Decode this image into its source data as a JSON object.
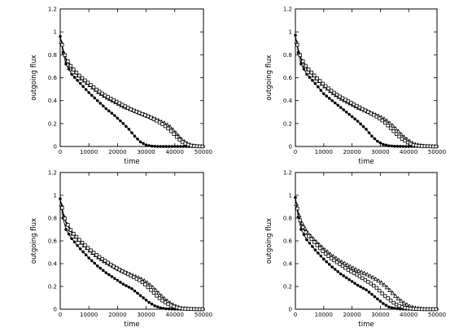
{
  "chart_data": [
    {
      "type": "line",
      "xlabel": "time",
      "ylabel": "outgoing flux",
      "xlim": [
        0,
        50000
      ],
      "ylim": [
        0,
        1.2
      ],
      "xticks": [
        "0",
        "10000",
        "20000",
        "30000",
        "40000",
        "50000"
      ],
      "yticks": [
        "0",
        "0.2",
        "0.4",
        "0.6",
        "0.8",
        "1",
        "1.2"
      ],
      "series": [
        {
          "marker": "circle-filled",
          "x": [
            0,
            1000,
            2000,
            4000,
            7000,
            10000,
            13000,
            16000,
            19000,
            22000,
            24000,
            26000,
            28000,
            30000,
            32000,
            34000,
            36000,
            40000,
            45000,
            50000
          ],
          "y": [
            0.96,
            0.82,
            0.72,
            0.63,
            0.55,
            0.47,
            0.4,
            0.33,
            0.27,
            0.2,
            0.15,
            0.09,
            0.04,
            0.012,
            0.003,
            0,
            0,
            0,
            0,
            0
          ]
        },
        {
          "marker": "triangle-open",
          "x": [
            0,
            1000,
            2000,
            4000,
            7000,
            10000,
            13000,
            16000,
            19000,
            22000,
            25000,
            28000,
            31000,
            34000,
            36000,
            38000,
            40000,
            42000,
            44000,
            46000,
            48000,
            50000
          ],
          "y": [
            0.95,
            0.84,
            0.76,
            0.68,
            0.6,
            0.54,
            0.48,
            0.43,
            0.39,
            0.35,
            0.32,
            0.29,
            0.26,
            0.23,
            0.21,
            0.18,
            0.13,
            0.07,
            0.03,
            0.008,
            0.002,
            0
          ]
        },
        {
          "marker": "square-open",
          "x": [
            0,
            1000,
            2000,
            4000,
            7000,
            10000,
            13000,
            16000,
            19000,
            22000,
            25000,
            28000,
            31000,
            34000,
            36000,
            38000,
            40000,
            42000,
            44000,
            46000,
            48000,
            50000
          ],
          "y": [
            0.96,
            0.85,
            0.77,
            0.69,
            0.61,
            0.55,
            0.49,
            0.44,
            0.4,
            0.36,
            0.32,
            0.29,
            0.26,
            0.22,
            0.19,
            0.15,
            0.1,
            0.05,
            0.02,
            0.005,
            0.001,
            0
          ]
        }
      ]
    },
    {
      "type": "line",
      "xlabel": "time",
      "ylabel": "outgoing flux",
      "xlim": [
        0,
        50000
      ],
      "ylim": [
        0,
        1.2
      ],
      "xticks": [
        "0",
        "10000",
        "20000",
        "30000",
        "40000",
        "50000"
      ],
      "yticks": [
        "0",
        "0.2",
        "0.4",
        "0.6",
        "0.8",
        "1",
        "1.2"
      ],
      "series": [
        {
          "marker": "circle-filled",
          "x": [
            0,
            1000,
            2000,
            4000,
            7000,
            10000,
            13000,
            16000,
            19000,
            22000,
            25000,
            27000,
            29000,
            31000,
            33000,
            35000,
            38000,
            42000,
            46000,
            50000
          ],
          "y": [
            0.97,
            0.82,
            0.72,
            0.63,
            0.55,
            0.46,
            0.4,
            0.34,
            0.28,
            0.22,
            0.15,
            0.09,
            0.045,
            0.018,
            0.006,
            0.002,
            0,
            0,
            0,
            0
          ]
        },
        {
          "marker": "triangle-open",
          "x": [
            0,
            1000,
            2000,
            4000,
            7000,
            10000,
            13000,
            16000,
            19000,
            22000,
            25000,
            28000,
            30000,
            32000,
            34000,
            36000,
            38000,
            40000,
            42000,
            45000,
            48000,
            50000
          ],
          "y": [
            0.95,
            0.84,
            0.76,
            0.68,
            0.6,
            0.53,
            0.47,
            0.42,
            0.38,
            0.34,
            0.31,
            0.28,
            0.26,
            0.23,
            0.19,
            0.14,
            0.09,
            0.05,
            0.02,
            0.005,
            0.001,
            0
          ]
        },
        {
          "marker": "square-open",
          "x": [
            0,
            1000,
            2000,
            4000,
            7000,
            10000,
            13000,
            16000,
            19000,
            22000,
            25000,
            28000,
            30000,
            32000,
            34000,
            36000,
            38000,
            40000,
            42000,
            45000,
            48000,
            50000
          ],
          "y": [
            0.96,
            0.85,
            0.77,
            0.69,
            0.61,
            0.54,
            0.48,
            0.43,
            0.39,
            0.35,
            0.31,
            0.27,
            0.24,
            0.2,
            0.15,
            0.1,
            0.06,
            0.03,
            0.01,
            0.003,
            0,
            0
          ]
        }
      ]
    },
    {
      "type": "line",
      "xlabel": "time",
      "ylabel": "outgoing flux",
      "xlim": [
        0,
        50000
      ],
      "ylim": [
        0,
        1.2
      ],
      "xticks": [
        "0",
        "10000",
        "20000",
        "30000",
        "40000",
        "50000"
      ],
      "yticks": [
        "0",
        "0.2",
        "0.4",
        "0.6",
        "0.8",
        "1",
        "1.2"
      ],
      "series": [
        {
          "marker": "circle-filled",
          "x": [
            0,
            1000,
            2000,
            4000,
            7000,
            10000,
            13000,
            16000,
            19000,
            22000,
            25000,
            27000,
            29000,
            31000,
            33000,
            35000,
            37000,
            40000,
            45000,
            50000
          ],
          "y": [
            0.97,
            0.8,
            0.7,
            0.62,
            0.53,
            0.45,
            0.38,
            0.32,
            0.27,
            0.22,
            0.18,
            0.14,
            0.1,
            0.06,
            0.03,
            0.012,
            0.004,
            0,
            0,
            0
          ]
        },
        {
          "marker": "triangle-open",
          "x": [
            0,
            1000,
            2000,
            4000,
            7000,
            10000,
            13000,
            16000,
            19000,
            22000,
            25000,
            28000,
            30000,
            32000,
            34000,
            36000,
            38000,
            40000,
            42000,
            45000,
            48000,
            50000
          ],
          "y": [
            0.96,
            0.84,
            0.76,
            0.67,
            0.59,
            0.52,
            0.46,
            0.41,
            0.37,
            0.33,
            0.3,
            0.27,
            0.24,
            0.2,
            0.15,
            0.1,
            0.06,
            0.03,
            0.01,
            0.003,
            0,
            0
          ]
        },
        {
          "marker": "square-open",
          "x": [
            0,
            1000,
            2000,
            4000,
            7000,
            10000,
            13000,
            16000,
            19000,
            22000,
            25000,
            28000,
            30000,
            32000,
            34000,
            36000,
            38000,
            40000,
            42000,
            45000,
            48000,
            50000
          ],
          "y": [
            0.97,
            0.85,
            0.77,
            0.68,
            0.6,
            0.53,
            0.47,
            0.42,
            0.37,
            0.33,
            0.29,
            0.25,
            0.21,
            0.16,
            0.11,
            0.07,
            0.04,
            0.02,
            0.007,
            0.002,
            0,
            0
          ]
        }
      ]
    },
    {
      "type": "line",
      "xlabel": "time",
      "ylabel": "outgoing flux",
      "xlim": [
        0,
        50000
      ],
      "ylim": [
        0,
        1.2
      ],
      "xticks": [
        "0",
        "10000",
        "20000",
        "30000",
        "40000",
        "50000"
      ],
      "yticks": [
        "0",
        "0.2",
        "0.4",
        "0.6",
        "0.8",
        "1",
        "1.2"
      ],
      "series": [
        {
          "marker": "circle-filled",
          "x": [
            0,
            1000,
            2000,
            4000,
            7000,
            10000,
            13000,
            16000,
            19000,
            22000,
            25000,
            27000,
            29000,
            31000,
            33000,
            35000,
            37000,
            40000,
            45000,
            50000
          ],
          "y": [
            0.98,
            0.81,
            0.7,
            0.61,
            0.52,
            0.44,
            0.37,
            0.31,
            0.26,
            0.21,
            0.17,
            0.13,
            0.09,
            0.05,
            0.02,
            0.008,
            0.002,
            0,
            0,
            0
          ]
        },
        {
          "marker": "triangle-open",
          "x": [
            0,
            1000,
            2000,
            4000,
            7000,
            10000,
            13000,
            16000,
            19000,
            22000,
            25000,
            28000,
            30000,
            32000,
            34000,
            36000,
            38000,
            40000,
            42000,
            45000,
            48000,
            50000
          ],
          "y": [
            0.96,
            0.85,
            0.77,
            0.68,
            0.6,
            0.53,
            0.47,
            0.42,
            0.38,
            0.34,
            0.31,
            0.27,
            0.24,
            0.2,
            0.15,
            0.1,
            0.06,
            0.03,
            0.012,
            0.003,
            0,
            0
          ]
        },
        {
          "marker": "square-open",
          "x": [
            0,
            1000,
            2000,
            4000,
            7000,
            10000,
            13000,
            16000,
            19000,
            22000,
            25000,
            27000,
            29000,
            31000,
            33000,
            35000,
            37000,
            39000,
            42000,
            45000,
            48000,
            50000
          ],
          "y": [
            0.97,
            0.84,
            0.75,
            0.66,
            0.58,
            0.5,
            0.44,
            0.39,
            0.34,
            0.3,
            0.25,
            0.22,
            0.18,
            0.13,
            0.09,
            0.05,
            0.025,
            0.01,
            0.003,
            0,
            0,
            0
          ]
        }
      ]
    }
  ]
}
